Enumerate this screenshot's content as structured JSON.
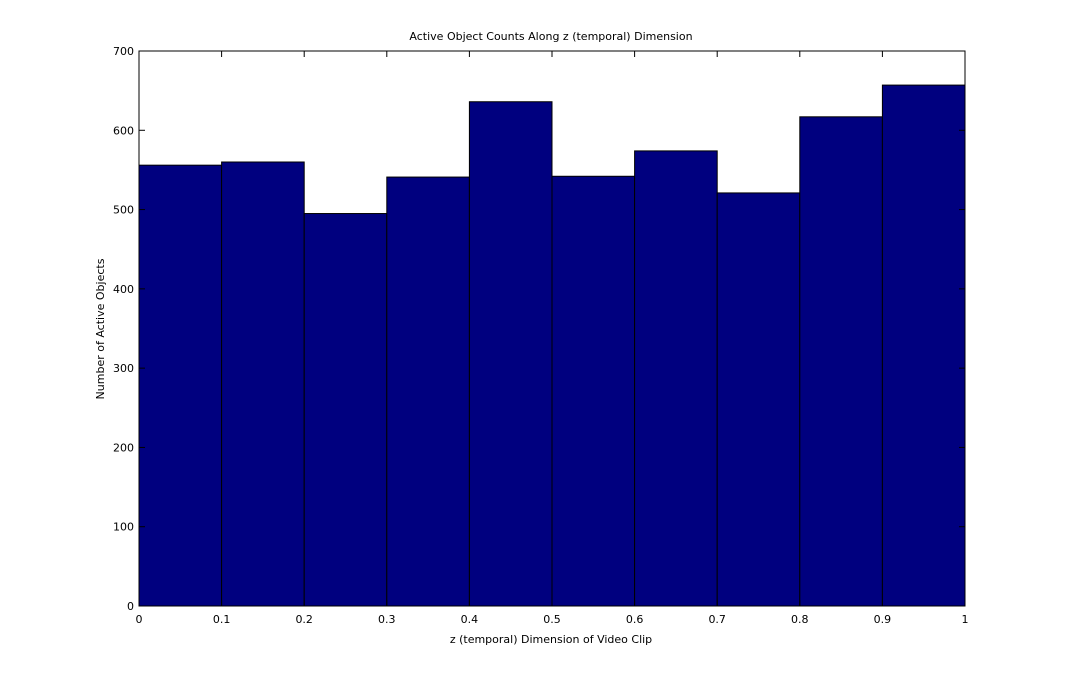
{
  "chart_data": {
    "type": "bar",
    "title": "Active Object Counts Along z (temporal) Dimension",
    "xlabel": "z (temporal) Dimension of Video Clip",
    "ylabel": "Number of Active Objects",
    "bin_edges": [
      0,
      0.1,
      0.2,
      0.3,
      0.4,
      0.5,
      0.6,
      0.7,
      0.8,
      0.9,
      1
    ],
    "values": [
      556,
      560,
      495,
      541,
      636,
      542,
      574,
      521,
      617,
      657
    ],
    "xlim": [
      0,
      1
    ],
    "ylim": [
      0,
      700
    ],
    "xticks": [
      0,
      0.1,
      0.2,
      0.3,
      0.4,
      0.5,
      0.6,
      0.7,
      0.8,
      0.9,
      1
    ],
    "xtick_labels": [
      "0",
      "0.1",
      "0.2",
      "0.3",
      "0.4",
      "0.5",
      "0.6",
      "0.7",
      "0.8",
      "0.9",
      "1"
    ],
    "yticks": [
      0,
      100,
      200,
      300,
      400,
      500,
      600,
      700
    ],
    "ytick_labels": [
      "0",
      "100",
      "200",
      "300",
      "400",
      "500",
      "600",
      "700"
    ],
    "grid": false,
    "bar_color": "#00007F",
    "edge_color": "#000000"
  }
}
